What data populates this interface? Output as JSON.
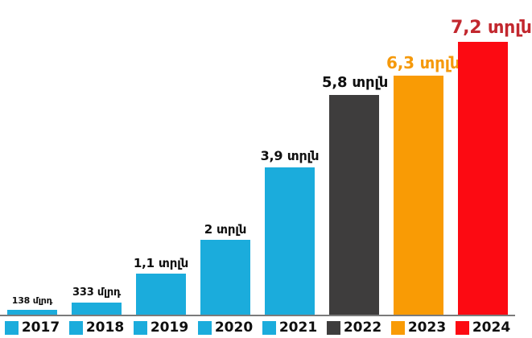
{
  "canvas": {
    "background": "#ffffff",
    "axis_line_color": "#7b7b7b"
  },
  "chart_data": {
    "type": "bar",
    "title": "",
    "categories": [
      "2017",
      "2018",
      "2019",
      "2020",
      "2021",
      "2022",
      "2023",
      "2024"
    ],
    "values": [
      0.138,
      0.333,
      1.1,
      2,
      3.9,
      5.8,
      6.3,
      7.2
    ],
    "value_labels": [
      "138 մլրդ",
      "333 մլրդ",
      "1,1 տրլն",
      "2 տրլն",
      "3,9 տրլն",
      "5,8 տրլն",
      "6,3 տրլն",
      "7,2 տրլն"
    ],
    "ylim": [
      0,
      7.2
    ],
    "grid": false,
    "legend_position": "bottom",
    "legend_labels": [
      "2017",
      "2018",
      "2019",
      "2020",
      "2021",
      "2022",
      "2023",
      "2024"
    ],
    "bar_colors": [
      "#1bacdc",
      "#1bacdc",
      "#1bacdc",
      "#1bacdc",
      "#1bacdc",
      "#3e3d3d",
      "#f99b05",
      "#fc0a12"
    ],
    "value_label_colors": [
      "#0f0f0f",
      "#0f0f0f",
      "#0f0f0f",
      "#0f0f0f",
      "#0f0f0f",
      "#0f0f0f",
      "#f5990b",
      "#c2272e"
    ],
    "value_label_sizes": [
      11,
      13,
      15,
      15,
      16,
      18,
      20,
      22
    ],
    "legend_text_color": "#0f0f0f"
  }
}
